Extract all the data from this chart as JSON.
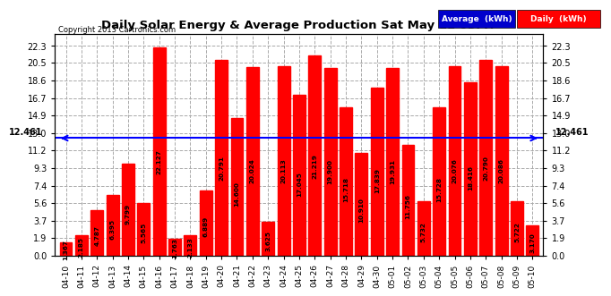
{
  "title": "Daily Solar Energy & Average Production Sat May 11 05:47",
  "copyright": "Copyright 2013 Cartronics.com",
  "average_value": 12.461,
  "average_label": "12.461",
  "bar_color": "#ff0000",
  "average_line_color": "#0000ff",
  "background_color": "#ffffff",
  "plot_bg_color": "#ffffff",
  "grid_color": "#aaaaaa",
  "categories": [
    "04-10",
    "04-11",
    "04-12",
    "04-13",
    "04-14",
    "04-15",
    "04-16",
    "04-17",
    "04-18",
    "04-19",
    "04-20",
    "04-21",
    "04-22",
    "04-23",
    "04-24",
    "04-25",
    "04-26",
    "04-27",
    "04-28",
    "04-29",
    "04-30",
    "05-01",
    "05-02",
    "05-03",
    "05-04",
    "05-05",
    "05-06",
    "05-07",
    "05-08",
    "05-09",
    "05-10"
  ],
  "values": [
    1.367,
    2.185,
    4.787,
    6.395,
    9.799,
    5.565,
    22.127,
    1.763,
    2.133,
    6.889,
    20.791,
    14.6,
    20.024,
    3.625,
    20.113,
    17.045,
    21.219,
    19.9,
    15.718,
    10.91,
    17.839,
    19.931,
    11.756,
    5.732,
    15.728,
    20.076,
    18.416,
    20.79,
    20.086,
    5.722,
    3.17
  ],
  "yticks": [
    0.0,
    1.9,
    3.7,
    5.6,
    7.4,
    9.3,
    11.2,
    13.0,
    14.9,
    16.7,
    18.6,
    20.5,
    22.3
  ],
  "ylim": [
    0,
    23.5
  ],
  "legend_avg_color": "#0000cc",
  "legend_daily_color": "#ff0000",
  "legend_avg_text": "Average  (kWh)",
  "legend_daily_text": "Daily  (kWh)"
}
